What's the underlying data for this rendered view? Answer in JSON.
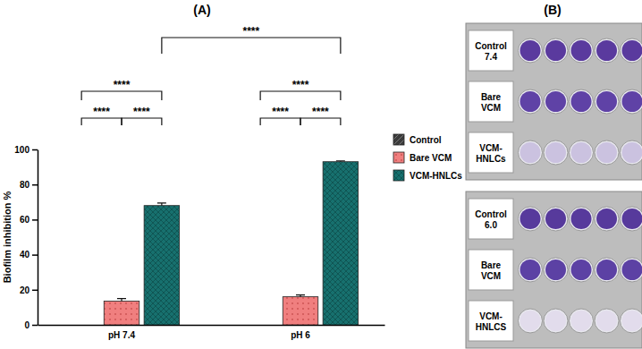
{
  "chart_data": {
    "type": "bar",
    "title": "(A)",
    "y_label": "Biofilm inhibition %",
    "categories": [
      "pH 7.4",
      "pH 6"
    ],
    "series": [
      {
        "name": "Control",
        "color": "#3b3b3b",
        "values": [
          0,
          0
        ]
      },
      {
        "name": "Bare VCM",
        "color": "#f07f7f",
        "values": [
          13.5,
          16
        ],
        "errors": [
          1.5,
          1
        ]
      },
      {
        "name": "VCM-HNLCs",
        "color": "#17706e",
        "values": [
          68,
          93
        ],
        "errors": [
          1.5,
          0.5
        ]
      }
    ],
    "ylim": [
      0,
      100
    ],
    "yticks": [
      0,
      20,
      40,
      60,
      80,
      100
    ],
    "legend": "right",
    "annotations": [
      {
        "text": "****",
        "pairs": [
          [
            0,
            0
          ],
          [
            0,
            1
          ]
        ]
      },
      {
        "text": "****",
        "pairs": [
          [
            0,
            1
          ],
          [
            0,
            2
          ]
        ]
      },
      {
        "text": "****",
        "pairs": [
          [
            0,
            0
          ],
          [
            0,
            2
          ]
        ]
      },
      {
        "text": "****",
        "pairs": [
          [
            1,
            0
          ],
          [
            1,
            1
          ]
        ]
      },
      {
        "text": "****",
        "pairs": [
          [
            1,
            1
          ],
          [
            1,
            2
          ]
        ]
      },
      {
        "text": "****",
        "pairs": [
          [
            1,
            0
          ],
          [
            1,
            2
          ]
        ]
      },
      {
        "text": "****",
        "pairs": [
          [
            0,
            2
          ],
          [
            1,
            2
          ]
        ]
      }
    ]
  },
  "plate_panel": {
    "title": "(B)",
    "plates": [
      {
        "rows": [
          [
            "Control",
            "7.4"
          ],
          [
            "Bare",
            "VCM"
          ],
          [
            "VCM-",
            "HNLCs"
          ]
        ]
      },
      {
        "rows": [
          [
            "Control",
            "6.0"
          ],
          [
            "Bare",
            "VCM"
          ],
          [
            "VCM-",
            "HNLCS"
          ]
        ]
      }
    ]
  }
}
